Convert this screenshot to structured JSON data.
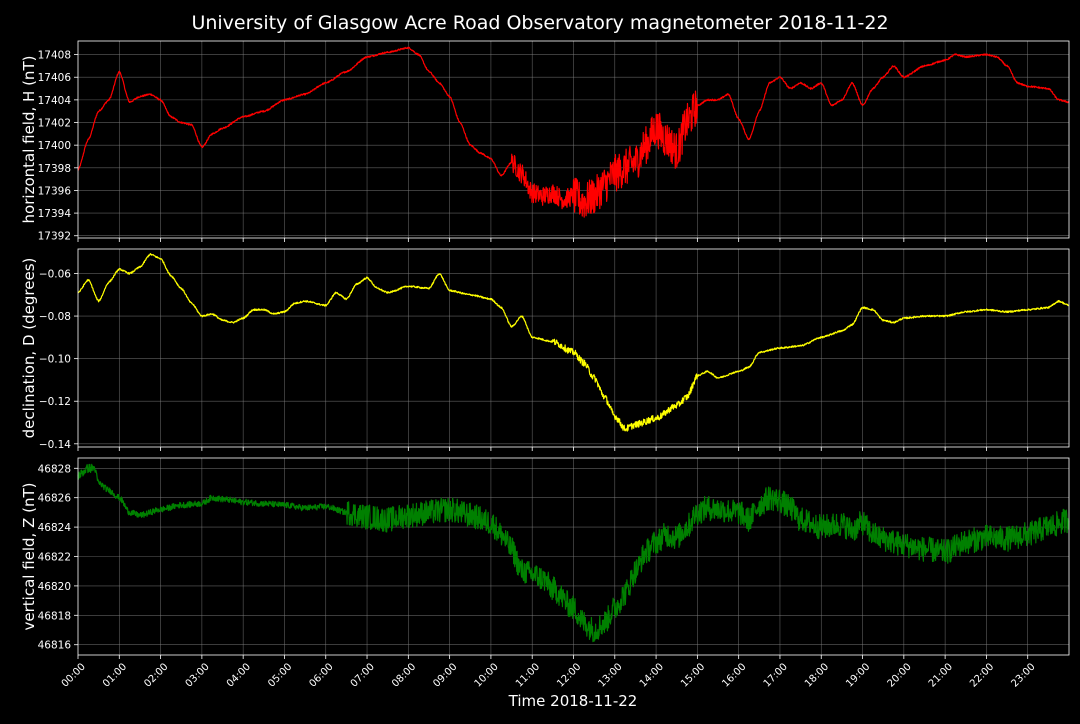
{
  "chart_data": {
    "type": "line",
    "title": "University of Glasgow Acre Road Observatory magnetometer 2018-11-22",
    "xlabel": "Time 2018-11-22",
    "xlim_hours": [
      0,
      24
    ],
    "x_tick_labels": [
      "00:00",
      "01:00",
      "02:00",
      "03:00",
      "04:00",
      "05:00",
      "06:00",
      "07:00",
      "08:00",
      "09:00",
      "10:00",
      "11:00",
      "12:00",
      "13:00",
      "14:00",
      "15:00",
      "16:00",
      "17:00",
      "18:00",
      "19:00",
      "20:00",
      "21:00",
      "22:00",
      "23:00"
    ],
    "grid": true,
    "background": "#000000",
    "panels": [
      {
        "id": "H",
        "ylabel": "horizontal field, H (nT)",
        "color": "#ff0000",
        "ylim": [
          17391.8,
          17409.2
        ],
        "y_ticks": [
          17392,
          17394,
          17396,
          17398,
          17400,
          17402,
          17404,
          17406,
          17408
        ],
        "y_tick_labels": [
          "17392",
          "17394",
          "17396",
          "17398",
          "17400",
          "17402",
          "17404",
          "17406",
          "17408"
        ],
        "noise_segments": [
          [
            12,
            15,
            1.6
          ],
          [
            10.5,
            12.5,
            0.8
          ]
        ],
        "points": [
          [
            0,
            17397.8
          ],
          [
            0.25,
            17400.5
          ],
          [
            0.5,
            17403
          ],
          [
            0.75,
            17404
          ],
          [
            1,
            17406.5
          ],
          [
            1.25,
            17403.8
          ],
          [
            1.5,
            17404.3
          ],
          [
            1.75,
            17404.5
          ],
          [
            2,
            17404
          ],
          [
            2.25,
            17402.5
          ],
          [
            2.5,
            17402
          ],
          [
            2.75,
            17401.8
          ],
          [
            3,
            17399.8
          ],
          [
            3.25,
            17401
          ],
          [
            3.5,
            17401.5
          ],
          [
            4,
            17402.5
          ],
          [
            4.5,
            17403
          ],
          [
            5,
            17404
          ],
          [
            5.5,
            17404.5
          ],
          [
            6,
            17405.5
          ],
          [
            6.5,
            17406.5
          ],
          [
            7,
            17407.8
          ],
          [
            7.5,
            17408.2
          ],
          [
            8,
            17408.6
          ],
          [
            8.25,
            17408
          ],
          [
            8.5,
            17406.5
          ],
          [
            8.75,
            17405.5
          ],
          [
            9,
            17404.3
          ],
          [
            9.25,
            17402
          ],
          [
            9.5,
            17400
          ],
          [
            9.75,
            17399.3
          ],
          [
            10,
            17398.8
          ],
          [
            10.25,
            17397.3
          ],
          [
            10.5,
            17398.5
          ],
          [
            10.75,
            17397.5
          ],
          [
            11,
            17395.8
          ],
          [
            11.25,
            17395.5
          ],
          [
            11.5,
            17395.8
          ],
          [
            11.75,
            17395.2
          ],
          [
            12,
            17395.5
          ],
          [
            12.25,
            17395
          ],
          [
            12.5,
            17395.5
          ],
          [
            12.75,
            17396.5
          ],
          [
            13,
            17397.5
          ],
          [
            13.25,
            17398
          ],
          [
            13.5,
            17398.5
          ],
          [
            13.75,
            17400
          ],
          [
            14,
            17401.5
          ],
          [
            14.25,
            17400.5
          ],
          [
            14.5,
            17399.5
          ],
          [
            14.75,
            17402
          ],
          [
            15,
            17403.5
          ],
          [
            15.25,
            17404
          ],
          [
            15.5,
            17404
          ],
          [
            15.75,
            17404.5
          ],
          [
            16,
            17402.3
          ],
          [
            16.25,
            17400.5
          ],
          [
            16.5,
            17403
          ],
          [
            16.75,
            17405.5
          ],
          [
            17,
            17406
          ],
          [
            17.25,
            17405
          ],
          [
            17.5,
            17405.5
          ],
          [
            17.75,
            17405
          ],
          [
            18,
            17405.5
          ],
          [
            18.25,
            17403.5
          ],
          [
            18.5,
            17404
          ],
          [
            18.75,
            17405.5
          ],
          [
            19,
            17403.5
          ],
          [
            19.25,
            17405
          ],
          [
            19.5,
            17406
          ],
          [
            19.75,
            17407
          ],
          [
            20,
            17406
          ],
          [
            20.5,
            17407
          ],
          [
            21,
            17407.5
          ],
          [
            21.25,
            17408
          ],
          [
            21.5,
            17407.8
          ],
          [
            22,
            17408
          ],
          [
            22.25,
            17407.8
          ],
          [
            22.5,
            17407
          ],
          [
            22.75,
            17405.5
          ],
          [
            23,
            17405.2
          ],
          [
            23.5,
            17405
          ],
          [
            23.75,
            17404
          ],
          [
            24,
            17403.8
          ]
        ]
      },
      {
        "id": "D",
        "ylabel": "declination, D (degrees)",
        "color": "#ffff00",
        "ylim": [
          -0.1415,
          -0.0485
        ],
        "y_ticks": [
          -0.14,
          -0.12,
          -0.1,
          -0.08,
          -0.06
        ],
        "y_tick_labels": [
          "−0.14",
          "−0.12",
          "−0.10",
          "−0.08",
          "−0.06"
        ],
        "noise_segments": [
          [
            11.5,
            15,
            0.0012
          ]
        ],
        "points": [
          [
            0,
            -0.069
          ],
          [
            0.25,
            -0.063
          ],
          [
            0.5,
            -0.073
          ],
          [
            0.75,
            -0.064
          ],
          [
            1,
            -0.058
          ],
          [
            1.25,
            -0.06
          ],
          [
            1.5,
            -0.057
          ],
          [
            1.75,
            -0.051
          ],
          [
            2,
            -0.053
          ],
          [
            2.25,
            -0.061
          ],
          [
            2.5,
            -0.067
          ],
          [
            2.75,
            -0.074
          ],
          [
            3,
            -0.08
          ],
          [
            3.25,
            -0.079
          ],
          [
            3.5,
            -0.082
          ],
          [
            3.75,
            -0.083
          ],
          [
            4,
            -0.081
          ],
          [
            4.25,
            -0.077
          ],
          [
            4.5,
            -0.077
          ],
          [
            4.75,
            -0.079
          ],
          [
            5,
            -0.078
          ],
          [
            5.25,
            -0.074
          ],
          [
            5.5,
            -0.073
          ],
          [
            6,
            -0.075
          ],
          [
            6.25,
            -0.069
          ],
          [
            6.5,
            -0.072
          ],
          [
            6.75,
            -0.065
          ],
          [
            7,
            -0.062
          ],
          [
            7.25,
            -0.067
          ],
          [
            7.5,
            -0.069
          ],
          [
            8,
            -0.066
          ],
          [
            8.5,
            -0.067
          ],
          [
            8.75,
            -0.06
          ],
          [
            9,
            -0.068
          ],
          [
            9.5,
            -0.07
          ],
          [
            10,
            -0.072
          ],
          [
            10.25,
            -0.076
          ],
          [
            10.5,
            -0.085
          ],
          [
            10.75,
            -0.08
          ],
          [
            11,
            -0.09
          ],
          [
            11.5,
            -0.092
          ],
          [
            12,
            -0.097
          ],
          [
            12.25,
            -0.102
          ],
          [
            12.5,
            -0.109
          ],
          [
            12.75,
            -0.118
          ],
          [
            13,
            -0.127
          ],
          [
            13.25,
            -0.133
          ],
          [
            13.5,
            -0.131
          ],
          [
            14,
            -0.128
          ],
          [
            14.5,
            -0.122
          ],
          [
            14.75,
            -0.118
          ],
          [
            15,
            -0.108
          ],
          [
            15.25,
            -0.106
          ],
          [
            15.5,
            -0.109
          ],
          [
            16,
            -0.106
          ],
          [
            16.25,
            -0.104
          ],
          [
            16.5,
            -0.097
          ],
          [
            17,
            -0.095
          ],
          [
            17.5,
            -0.094
          ],
          [
            18,
            -0.09
          ],
          [
            18.5,
            -0.087
          ],
          [
            18.75,
            -0.084
          ],
          [
            19,
            -0.076
          ],
          [
            19.25,
            -0.077
          ],
          [
            19.5,
            -0.082
          ],
          [
            19.75,
            -0.083
          ],
          [
            20,
            -0.081
          ],
          [
            20.5,
            -0.08
          ],
          [
            21,
            -0.08
          ],
          [
            21.5,
            -0.078
          ],
          [
            22,
            -0.077
          ],
          [
            22.5,
            -0.078
          ],
          [
            23,
            -0.077
          ],
          [
            23.5,
            -0.076
          ],
          [
            23.75,
            -0.073
          ],
          [
            24,
            -0.075
          ]
        ]
      },
      {
        "id": "Z",
        "ylabel": "vertical field, Z (nT)",
        "color": "#008000",
        "ylim": [
          46815.3,
          46828.7
        ],
        "y_ticks": [
          46816,
          46818,
          46820,
          46822,
          46824,
          46826,
          46828
        ],
        "y_tick_labels": [
          "46816",
          "46818",
          "46820",
          "46822",
          "46824",
          "46826",
          "46828"
        ],
        "noise_segments": [
          [
            0,
            0.4,
            0.25
          ],
          [
            0.4,
            6.5,
            0.15
          ],
          [
            6.5,
            24,
            0.8
          ]
        ],
        "points": [
          [
            0,
            46827.5
          ],
          [
            0.25,
            46828
          ],
          [
            0.4,
            46828
          ],
          [
            0.5,
            46827
          ],
          [
            0.75,
            46826.5
          ],
          [
            1,
            46826
          ],
          [
            1.25,
            46825
          ],
          [
            1.5,
            46824.8
          ],
          [
            2,
            46825.2
          ],
          [
            2.5,
            46825.5
          ],
          [
            3,
            46825.6
          ],
          [
            3.25,
            46826
          ],
          [
            3.5,
            46825.9
          ],
          [
            4,
            46825.7
          ],
          [
            4.5,
            46825.6
          ],
          [
            5,
            46825.5
          ],
          [
            5.5,
            46825.3
          ],
          [
            6,
            46825.4
          ],
          [
            6.5,
            46825
          ],
          [
            7,
            46824.7
          ],
          [
            7.5,
            46824.5
          ],
          [
            8,
            46824.8
          ],
          [
            8.5,
            46825
          ],
          [
            9,
            46825.2
          ],
          [
            9.5,
            46824.8
          ],
          [
            10,
            46824.3
          ],
          [
            10.25,
            46823.5
          ],
          [
            10.5,
            46822.5
          ],
          [
            10.75,
            46821
          ],
          [
            11,
            46820.8
          ],
          [
            11.25,
            46820.5
          ],
          [
            11.5,
            46819.8
          ],
          [
            12,
            46818.5
          ],
          [
            12.25,
            46817.5
          ],
          [
            12.5,
            46817
          ],
          [
            12.75,
            46817.5
          ],
          [
            13,
            46818.5
          ],
          [
            13.25,
            46819.5
          ],
          [
            13.5,
            46821
          ],
          [
            13.75,
            46822.3
          ],
          [
            14,
            46823
          ],
          [
            14.25,
            46823.5
          ],
          [
            14.5,
            46823.3
          ],
          [
            14.75,
            46824
          ],
          [
            15,
            46825
          ],
          [
            15.25,
            46825.3
          ],
          [
            15.5,
            46825.2
          ],
          [
            16,
            46825
          ],
          [
            16.25,
            46824.5
          ],
          [
            16.5,
            46825.5
          ],
          [
            16.75,
            46826
          ],
          [
            17,
            46825.8
          ],
          [
            17.25,
            46825.3
          ],
          [
            17.5,
            46824.5
          ],
          [
            18,
            46824
          ],
          [
            18.5,
            46824.2
          ],
          [
            18.75,
            46823.8
          ],
          [
            19,
            46824.3
          ],
          [
            19.25,
            46823.5
          ],
          [
            19.5,
            46823.2
          ],
          [
            20,
            46822.8
          ],
          [
            20.5,
            46822.5
          ],
          [
            21,
            46822.3
          ],
          [
            21.5,
            46823
          ],
          [
            22,
            46823.3
          ],
          [
            22.5,
            46823.2
          ],
          [
            23,
            46823.5
          ],
          [
            23.5,
            46824
          ],
          [
            24,
            46824.5
          ]
        ]
      }
    ]
  }
}
